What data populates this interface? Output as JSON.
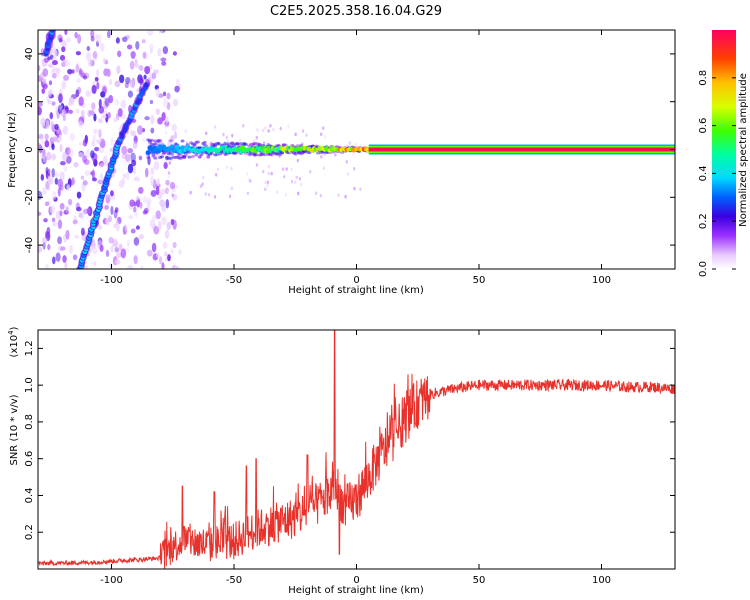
{
  "title": "C2E5.2025.358.16.04.G29",
  "chart_data": [
    {
      "type": "heatmap",
      "name": "spectrogram",
      "xlabel": "Height of straight line (km)",
      "ylabel": "Frequency (Hz)",
      "xlim": [
        -130,
        130
      ],
      "ylim": [
        -50,
        50
      ],
      "xticks": [
        -100,
        -50,
        0,
        50,
        100
      ],
      "yticks": [
        -40,
        -20,
        0,
        20,
        40
      ],
      "colorbar": {
        "label": "Normalized spectral amplitude",
        "range": [
          0.0,
          1.0
        ],
        "ticks": [
          0.0,
          0.2,
          0.4,
          0.6,
          0.8
        ]
      },
      "features": {
        "stable_line": {
          "x_range": [
            5,
            130
          ],
          "frequency": 0,
          "amplitude": 1.0
        },
        "noisy_line": {
          "x_range": [
            -85,
            5
          ],
          "frequency": 0,
          "amplitude_range": [
            0.3,
            0.9
          ]
        },
        "chirp_main": {
          "from": [
            -113,
            -50
          ],
          "to": [
            -97,
            3
          ],
          "amplitude": 0.35
        },
        "chirp_upper": {
          "from": [
            -97,
            3
          ],
          "to": [
            -86,
            27
          ],
          "amplitude": 0.3
        },
        "chirp_top": {
          "from": [
            -127,
            40
          ],
          "to": [
            -124,
            50
          ],
          "amplitude": 0.3
        },
        "noise_region_x": [
          -130,
          -80
        ]
      }
    },
    {
      "type": "line",
      "name": "snr",
      "xlabel": "Height of straight line (km)",
      "ylabel": "SNR (10 * v/v)",
      "y_multiplier": "(x10",
      "y_multiplier_exp": "4",
      "y_multiplier_close": ")",
      "xlim": [
        -130,
        130
      ],
      "ylim": [
        0.0,
        1.3
      ],
      "xticks": [
        -100,
        -50,
        0,
        50,
        100
      ],
      "yticks": [
        0.2,
        0.4,
        0.6,
        0.8,
        1.0,
        1.2
      ],
      "series": [
        {
          "name": "SNR",
          "color": "#e8312b",
          "x": [
            -130,
            -110,
            -90,
            -80,
            -75,
            -70,
            -65,
            -60,
            -55,
            -50,
            -45,
            -40,
            -35,
            -30,
            -25,
            -20,
            -15,
            -10,
            -8,
            -5,
            0,
            5,
            10,
            15,
            20,
            25,
            30,
            40,
            50,
            60,
            70,
            80,
            90,
            100,
            110,
            120,
            130
          ],
          "y": [
            0.03,
            0.035,
            0.05,
            0.06,
            0.12,
            0.16,
            0.14,
            0.13,
            0.15,
            0.15,
            0.19,
            0.22,
            0.24,
            0.26,
            0.28,
            0.32,
            0.36,
            0.42,
            0.45,
            0.33,
            0.38,
            0.5,
            0.62,
            0.72,
            0.82,
            0.9,
            0.95,
            0.98,
            1.0,
            1.0,
            1.0,
            1.0,
            1.0,
            1.0,
            0.99,
            0.99,
            0.98
          ],
          "spikes": [
            {
              "x": -71,
              "y": 0.45
            },
            {
              "x": -58,
              "y": 0.42
            },
            {
              "x": -45,
              "y": 0.56
            },
            {
              "x": -41,
              "y": 0.6
            },
            {
              "x": -20,
              "y": 0.62
            },
            {
              "x": -9,
              "y": 1.32
            },
            {
              "x": -7,
              "y": 0.08
            }
          ]
        }
      ]
    }
  ]
}
